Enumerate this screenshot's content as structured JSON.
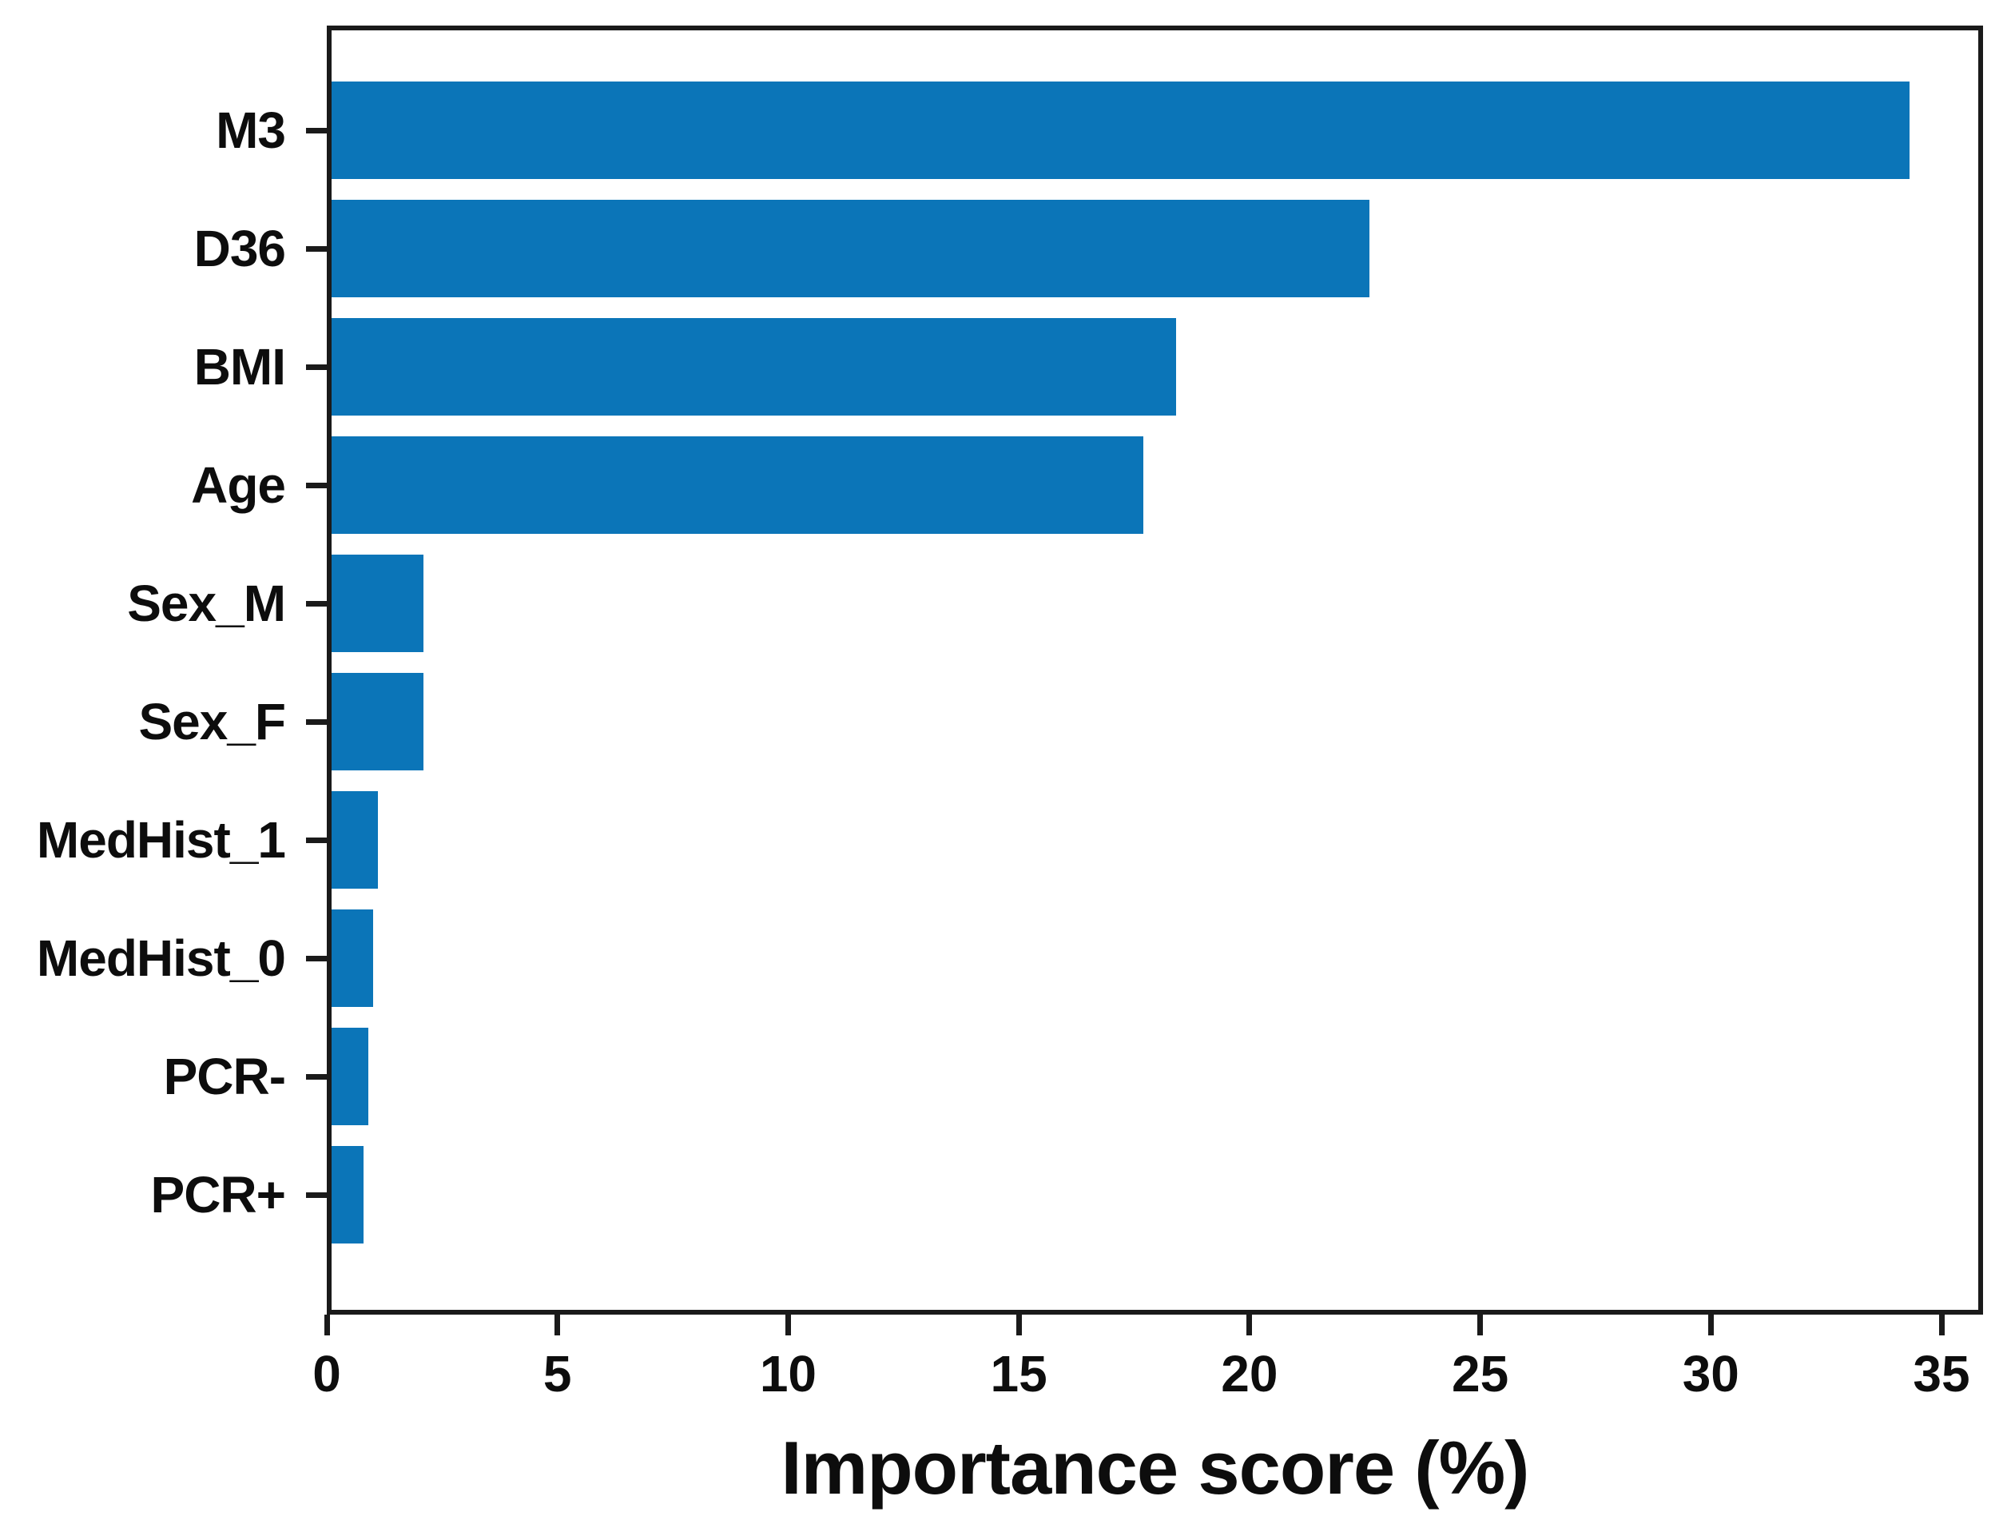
{
  "figure": {
    "background": "#ffffff",
    "text_color": "#0d0d0d"
  },
  "chart_data": {
    "type": "bar",
    "orientation": "horizontal",
    "title": "",
    "xlabel": "Importance score (%)",
    "ylabel": "",
    "categories": [
      "M3",
      "D36",
      "BMI",
      "Age",
      "Sex_M",
      "Sex_F",
      "MedHist_1",
      "MedHist_0",
      "PCR-",
      "PCR+"
    ],
    "values": [
      34.2,
      22.5,
      18.3,
      17.6,
      2.0,
      2.0,
      1.0,
      0.9,
      0.8,
      0.7
    ],
    "x_ticks": [
      "0",
      "5",
      "10",
      "15",
      "20",
      "25",
      "30",
      "35"
    ],
    "x_tick_values": [
      0,
      5,
      10,
      15,
      20,
      25,
      30,
      35
    ],
    "xlim": [
      0,
      35.9
    ],
    "bar_color": "#0b75b8",
    "axis_color": "#1a1a1a",
    "grid": false,
    "legend": null
  }
}
